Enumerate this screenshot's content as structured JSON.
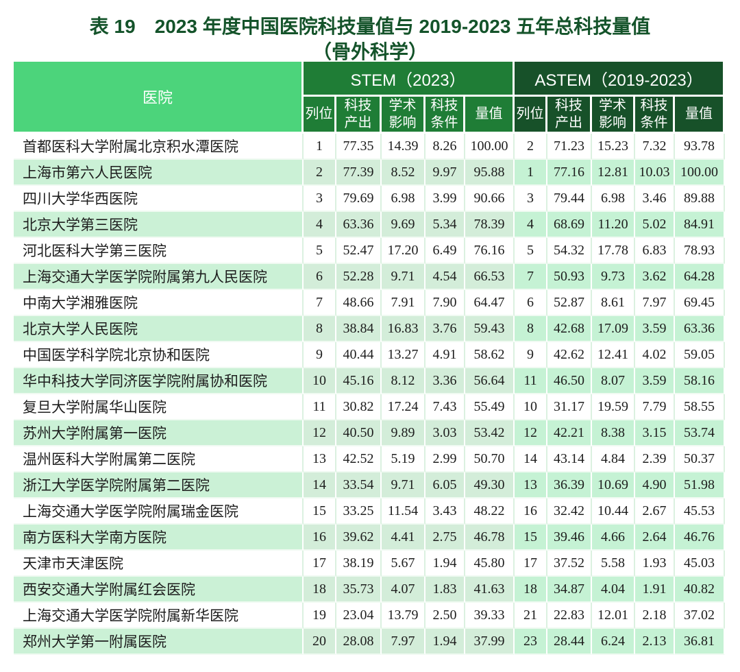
{
  "title": {
    "line1": "表 19　2023 年度中国医院科技量值与 2019-2023 五年总科技量值",
    "line2": "（骨外科学）"
  },
  "colors": {
    "title_green": "#14532a",
    "hospital_header_green": "#4cd47b",
    "stem_header_green": "#1f7d36",
    "astem_header_green": "#175129",
    "row_stripe_green": "#c9f1d5"
  },
  "table": {
    "hospital_header": "医院",
    "groups": [
      {
        "title": "STEM（2023）"
      },
      {
        "title": "ASTEM（2019-2023）"
      }
    ],
    "sub_headers": [
      "列位",
      "科技产出",
      "学术影响",
      "科技条件",
      "量值"
    ],
    "rows": [
      {
        "hospital": "首都医科大学附属北京积水潭医院",
        "stem": [
          "1",
          "77.35",
          "14.39",
          "8.26",
          "100.00"
        ],
        "astem": [
          "2",
          "71.23",
          "15.23",
          "7.32",
          "93.78"
        ]
      },
      {
        "hospital": "上海市第六人民医院",
        "stem": [
          "2",
          "77.39",
          "8.52",
          "9.97",
          "95.88"
        ],
        "astem": [
          "1",
          "77.16",
          "12.81",
          "10.03",
          "100.00"
        ]
      },
      {
        "hospital": "四川大学华西医院",
        "stem": [
          "3",
          "79.69",
          "6.98",
          "3.99",
          "90.66"
        ],
        "astem": [
          "3",
          "79.44",
          "6.98",
          "3.46",
          "89.88"
        ]
      },
      {
        "hospital": "北京大学第三医院",
        "stem": [
          "4",
          "63.36",
          "9.69",
          "5.34",
          "78.39"
        ],
        "astem": [
          "4",
          "68.69",
          "11.20",
          "5.02",
          "84.91"
        ]
      },
      {
        "hospital": "河北医科大学第三医院",
        "stem": [
          "5",
          "52.47",
          "17.20",
          "6.49",
          "76.16"
        ],
        "astem": [
          "5",
          "54.32",
          "17.78",
          "6.83",
          "78.93"
        ]
      },
      {
        "hospital": "上海交通大学医学院附属第九人民医院",
        "stem": [
          "6",
          "52.28",
          "9.71",
          "4.54",
          "66.53"
        ],
        "astem": [
          "7",
          "50.93",
          "9.73",
          "3.62",
          "64.28"
        ]
      },
      {
        "hospital": "中南大学湘雅医院",
        "stem": [
          "7",
          "48.66",
          "7.91",
          "7.90",
          "64.47"
        ],
        "astem": [
          "6",
          "52.87",
          "8.61",
          "7.97",
          "69.45"
        ]
      },
      {
        "hospital": "北京大学人民医院",
        "stem": [
          "8",
          "38.84",
          "16.83",
          "3.76",
          "59.43"
        ],
        "astem": [
          "8",
          "42.68",
          "17.09",
          "3.59",
          "63.36"
        ]
      },
      {
        "hospital": "中国医学科学院北京协和医院",
        "stem": [
          "9",
          "40.44",
          "13.27",
          "4.91",
          "58.62"
        ],
        "astem": [
          "9",
          "42.62",
          "12.41",
          "4.02",
          "59.05"
        ]
      },
      {
        "hospital": "华中科技大学同济医学院附属协和医院",
        "stem": [
          "10",
          "45.16",
          "8.12",
          "3.36",
          "56.64"
        ],
        "astem": [
          "11",
          "46.50",
          "8.07",
          "3.59",
          "58.16"
        ]
      },
      {
        "hospital": "复旦大学附属华山医院",
        "stem": [
          "11",
          "30.82",
          "17.24",
          "7.43",
          "55.49"
        ],
        "astem": [
          "10",
          "31.17",
          "19.59",
          "7.79",
          "58.55"
        ]
      },
      {
        "hospital": "苏州大学附属第一医院",
        "stem": [
          "12",
          "40.50",
          "9.89",
          "3.03",
          "53.42"
        ],
        "astem": [
          "12",
          "42.21",
          "8.38",
          "3.15",
          "53.74"
        ]
      },
      {
        "hospital": "温州医科大学附属第二医院",
        "stem": [
          "13",
          "42.52",
          "5.19",
          "2.99",
          "50.70"
        ],
        "astem": [
          "14",
          "43.14",
          "4.84",
          "2.39",
          "50.37"
        ]
      },
      {
        "hospital": "浙江大学医学院附属第二医院",
        "stem": [
          "14",
          "33.54",
          "9.71",
          "6.05",
          "49.30"
        ],
        "astem": [
          "13",
          "36.39",
          "10.69",
          "4.90",
          "51.98"
        ]
      },
      {
        "hospital": "上海交通大学医学院附属瑞金医院",
        "stem": [
          "15",
          "33.25",
          "11.54",
          "3.43",
          "48.22"
        ],
        "astem": [
          "16",
          "32.42",
          "10.44",
          "2.67",
          "45.53"
        ]
      },
      {
        "hospital": "南方医科大学南方医院",
        "stem": [
          "16",
          "39.62",
          "4.41",
          "2.75",
          "46.78"
        ],
        "astem": [
          "15",
          "39.46",
          "4.66",
          "2.64",
          "46.76"
        ]
      },
      {
        "hospital": "天津市天津医院",
        "stem": [
          "17",
          "38.19",
          "5.67",
          "1.94",
          "45.80"
        ],
        "astem": [
          "17",
          "37.52",
          "5.58",
          "1.93",
          "45.03"
        ]
      },
      {
        "hospital": "西安交通大学附属红会医院",
        "stem": [
          "18",
          "35.73",
          "4.07",
          "1.83",
          "41.63"
        ],
        "astem": [
          "18",
          "34.87",
          "4.04",
          "1.91",
          "40.82"
        ]
      },
      {
        "hospital": "上海交通大学医学院附属新华医院",
        "stem": [
          "19",
          "23.04",
          "13.79",
          "2.50",
          "39.33"
        ],
        "astem": [
          "21",
          "22.83",
          "12.01",
          "2.18",
          "37.02"
        ]
      },
      {
        "hospital": "郑州大学第一附属医院",
        "stem": [
          "20",
          "28.08",
          "7.97",
          "1.94",
          "37.99"
        ],
        "astem": [
          "23",
          "28.44",
          "6.24",
          "2.13",
          "36.81"
        ]
      }
    ]
  }
}
